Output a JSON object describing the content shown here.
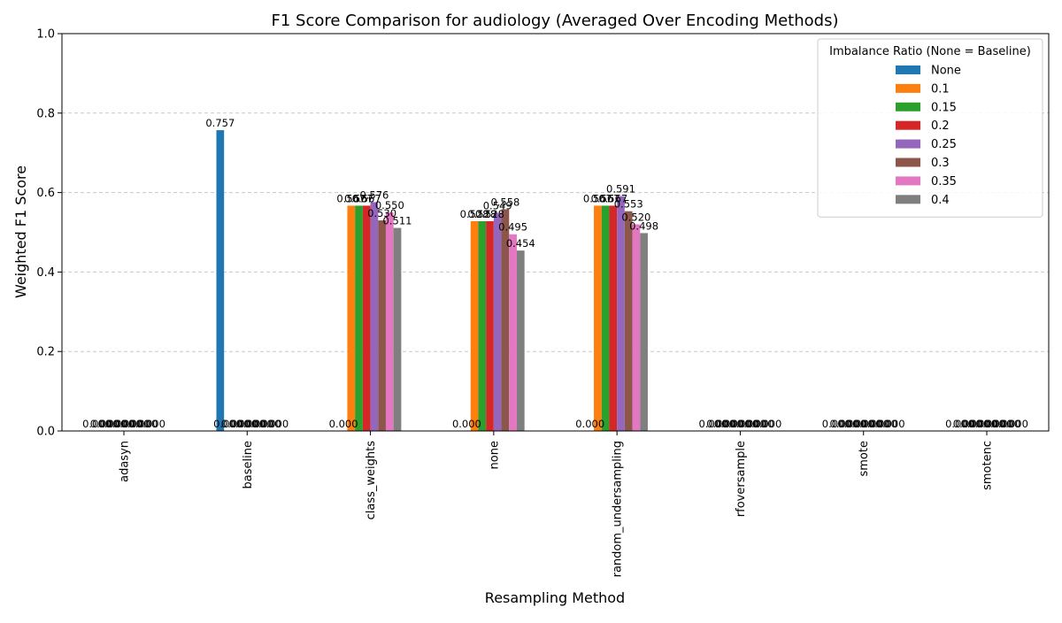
{
  "chart_data": {
    "type": "bar",
    "title": "F1 Score Comparison for audiology (Averaged Over Encoding Methods)",
    "xlabel": "Resampling Method",
    "ylabel": "Weighted F1 Score",
    "ylim": [
      0,
      1.0
    ],
    "yticks": [
      "0.0",
      "0.2",
      "0.4",
      "0.6",
      "0.8",
      "1.0"
    ],
    "grid": "y-dashed",
    "categories": [
      "adasyn",
      "baseline",
      "class_weights",
      "none",
      "random_undersampling",
      "rfoversample",
      "smote",
      "smotenc"
    ],
    "legend": {
      "title": "Imbalance Ratio (None = Baseline)",
      "placement": "top-right"
    },
    "series": [
      {
        "name": "None",
        "color": "#1f77b4",
        "values": [
          0.0,
          0.757,
          0.0,
          0.0,
          0.0,
          0.0,
          0.0,
          0.0
        ],
        "labels": [
          "0.000",
          "0.757",
          "0.000",
          "0.000",
          "0.000",
          "0.000",
          "0.000",
          "0.000"
        ]
      },
      {
        "name": "0.1",
        "color": "#ff7f0e",
        "values": [
          0.0,
          0.0,
          0.567,
          0.528,
          0.567,
          0.0,
          0.0,
          0.0
        ],
        "labels": [
          "0.000",
          "0.000",
          "0.567",
          "0.528",
          "0.567",
          "0.000",
          "0.000",
          "0.000"
        ]
      },
      {
        "name": "0.15",
        "color": "#2ca02c",
        "values": [
          0.0,
          0.0,
          0.567,
          0.528,
          0.567,
          0.0,
          0.0,
          0.0
        ],
        "labels": [
          "0.000",
          "0.000",
          "0.567",
          "0.528",
          "0.567",
          "0.000",
          "0.000",
          "0.000"
        ]
      },
      {
        "name": "0.2",
        "color": "#d62728",
        "values": [
          0.0,
          0.0,
          0.567,
          0.528,
          0.567,
          0.0,
          0.0,
          0.0
        ],
        "labels": [
          "0.000",
          "0.000",
          "0.567",
          "0.528",
          "0.567",
          "0.000",
          "0.000",
          "0.000"
        ]
      },
      {
        "name": "0.25",
        "color": "#9467bd",
        "values": [
          0.0,
          0.0,
          0.576,
          0.549,
          0.591,
          0.0,
          0.0,
          0.0
        ],
        "labels": [
          "0.000",
          "0.000",
          "0.576",
          "0.549",
          "0.591",
          "0.000",
          "0.000",
          "0.000"
        ]
      },
      {
        "name": "0.3",
        "color": "#8c564b",
        "values": [
          0.0,
          0.0,
          0.53,
          0.558,
          0.553,
          0.0,
          0.0,
          0.0
        ],
        "labels": [
          "0.000",
          "0.000",
          "0.530",
          "0.558",
          "0.553",
          "0.000",
          "0.000",
          "0.000"
        ]
      },
      {
        "name": "0.35",
        "color": "#e377c2",
        "values": [
          0.0,
          0.0,
          0.55,
          0.495,
          0.52,
          0.0,
          0.0,
          0.0
        ],
        "labels": [
          "0.000",
          "0.000",
          "0.550",
          "0.495",
          "0.520",
          "0.000",
          "0.000",
          "0.000"
        ]
      },
      {
        "name": "0.4",
        "color": "#7f7f7f",
        "values": [
          0.0,
          0.0,
          0.511,
          0.454,
          0.498,
          0.0,
          0.0,
          0.0
        ],
        "labels": [
          "0.000",
          "0.000",
          "0.511",
          "0.454",
          "0.498",
          "0.000",
          "0.000",
          "0.000"
        ]
      }
    ]
  }
}
